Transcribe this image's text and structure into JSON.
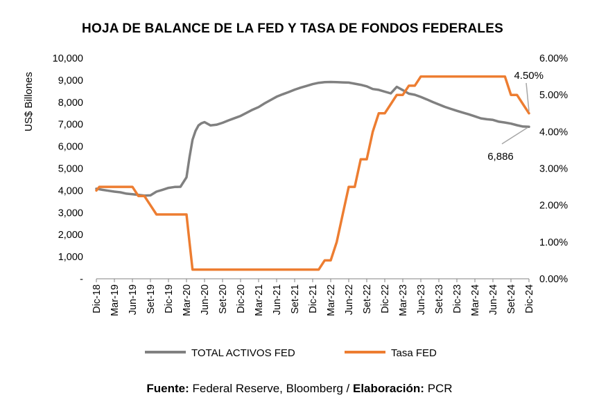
{
  "chart_data": {
    "type": "line",
    "title": "HOJA DE BALANCE DE LA FED Y TASA DE FONDOS FEDERALES",
    "ylabel": "US$ Billones",
    "ylim": [
      0,
      10000
    ],
    "y_ticks": [
      0,
      1000,
      2000,
      3000,
      4000,
      5000,
      6000,
      7000,
      8000,
      9000,
      10000
    ],
    "y_tick_labels": [
      "-",
      "1,000",
      "2,000",
      "3,000",
      "4,000",
      "5,000",
      "6,000",
      "7,000",
      "8,000",
      "9,000",
      "10,000"
    ],
    "y2lim": [
      0,
      6
    ],
    "y2_ticks": [
      0,
      1,
      2,
      3,
      4,
      5,
      6
    ],
    "y2_tick_labels": [
      "0.00%",
      "1.00%",
      "2.00%",
      "3.00%",
      "4.00%",
      "5.00%",
      "6.00%"
    ],
    "x_tick_labels": [
      "Dic-18",
      "Mar-19",
      "Jun-19",
      "Set-19",
      "Dic-19",
      "Mar-20",
      "Jun-20",
      "Set-20",
      "Dic-20",
      "Mar-21",
      "Jun-21",
      "Set-21",
      "Dic-21",
      "Mar-22",
      "Jun-22",
      "Set-22",
      "Dic-22",
      "Mar-23",
      "Jun-23",
      "Set-23",
      "Dic-23",
      "Mar-24",
      "Jun-24",
      "Set-24",
      "Dic-24"
    ],
    "grid": false,
    "legend_position": "bottom",
    "series": [
      {
        "name": "TOTAL ACTIVOS FED",
        "axis": "left",
        "color": "#808080",
        "x": [
          0,
          1,
          2,
          3,
          4,
          5,
          6,
          7,
          8,
          9,
          10,
          11,
          12,
          13,
          14,
          15,
          15.5,
          16,
          16.5,
          17,
          17.5,
          18,
          19,
          20,
          21,
          22,
          23,
          24,
          25,
          26,
          27,
          28,
          29,
          30,
          31,
          32,
          33,
          34,
          35,
          36,
          37,
          38,
          39,
          40,
          41,
          42,
          43,
          44,
          45,
          46,
          47,
          48,
          49,
          50,
          51,
          52,
          53,
          54,
          55,
          56,
          57,
          58,
          59,
          60,
          61,
          62,
          63,
          64,
          65,
          66,
          67,
          68,
          69,
          70,
          71,
          72
        ],
        "values": [
          4080,
          4030,
          3990,
          3950,
          3920,
          3860,
          3830,
          3800,
          3770,
          3780,
          3950,
          4030,
          4120,
          4160,
          4170,
          4600,
          5500,
          6300,
          6700,
          6950,
          7050,
          7100,
          6950,
          6980,
          7070,
          7180,
          7280,
          7380,
          7520,
          7660,
          7780,
          7950,
          8100,
          8250,
          8360,
          8460,
          8570,
          8660,
          8740,
          8820,
          8880,
          8910,
          8920,
          8910,
          8900,
          8890,
          8840,
          8790,
          8720,
          8600,
          8560,
          8480,
          8400,
          8700,
          8550,
          8390,
          8340,
          8240,
          8130,
          8010,
          7900,
          7790,
          7700,
          7610,
          7530,
          7450,
          7360,
          7270,
          7230,
          7200,
          7120,
          7080,
          7030,
          6960,
          6900,
          6886
        ]
      },
      {
        "name": "Tasa FED",
        "axis": "right",
        "color": "#ED7D31",
        "x": [
          0,
          0.5,
          1,
          2,
          3,
          4,
          5,
          6,
          7,
          8,
          9,
          10,
          11,
          12,
          13,
          14,
          15,
          15.5,
          16,
          17,
          18,
          19,
          20,
          21,
          22,
          23,
          24,
          25,
          26,
          27,
          28,
          29,
          30,
          31,
          32,
          33,
          34,
          35,
          36,
          37,
          38,
          39,
          40,
          41,
          42,
          43,
          44,
          45,
          46,
          47,
          48,
          49,
          50,
          51,
          52,
          53,
          54,
          55,
          56,
          57,
          58,
          59,
          60,
          61,
          62,
          63,
          64,
          65,
          66,
          67,
          68,
          69,
          70,
          71,
          72
        ],
        "values": [
          2.4,
          2.5,
          2.5,
          2.5,
          2.5,
          2.5,
          2.5,
          2.5,
          2.25,
          2.25,
          2.0,
          1.75,
          1.75,
          1.75,
          1.75,
          1.75,
          1.75,
          1.0,
          0.25,
          0.25,
          0.25,
          0.25,
          0.25,
          0.25,
          0.25,
          0.25,
          0.25,
          0.25,
          0.25,
          0.25,
          0.25,
          0.25,
          0.25,
          0.25,
          0.25,
          0.25,
          0.25,
          0.25,
          0.25,
          0.25,
          0.5,
          0.5,
          1.0,
          1.75,
          2.5,
          2.5,
          3.25,
          3.25,
          4.0,
          4.5,
          4.5,
          4.75,
          5.0,
          5.0,
          5.25,
          5.25,
          5.5,
          5.5,
          5.5,
          5.5,
          5.5,
          5.5,
          5.5,
          5.5,
          5.5,
          5.5,
          5.5,
          5.5,
          5.5,
          5.5,
          5.5,
          5.0,
          5.0,
          4.75,
          4.5
        ]
      }
    ],
    "annotations": [
      {
        "text": "4.50%",
        "series": "Tasa FED",
        "x": 72,
        "y": 4.5
      },
      {
        "text": "6,886",
        "series": "TOTAL ACTIVOS FED",
        "x": 72,
        "y": 6886
      }
    ],
    "source_label_1": "Fuente:",
    "source_text_1": " Federal Reserve, Bloomberg / ",
    "source_label_2": "Elaboración:",
    "source_text_2": " PCR"
  }
}
